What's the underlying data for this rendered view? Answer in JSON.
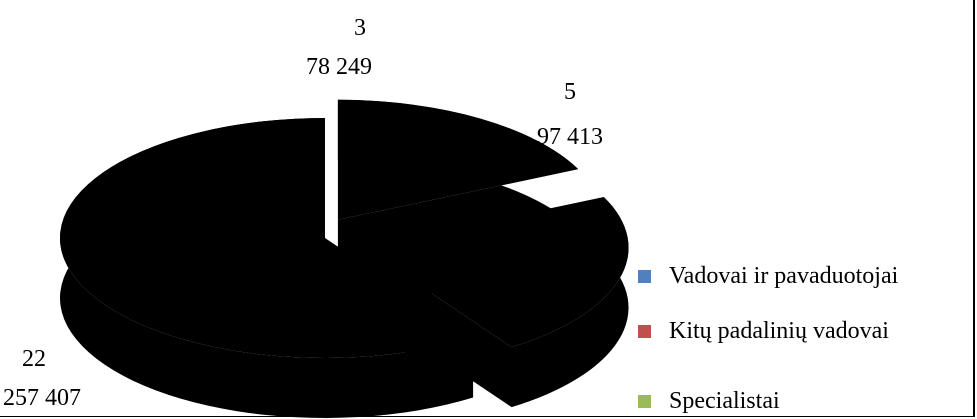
{
  "chart_data": {
    "type": "pie",
    "style": "3d-exploded",
    "categories": [
      "Vadovai ir pavaduotojai",
      "Kitų padalinių vadovai",
      "Specialistai"
    ],
    "counts": [
      3,
      5,
      22
    ],
    "values": [
      78249,
      97413,
      257407
    ],
    "data_labels": [
      {
        "count": "3",
        "value": "78 249"
      },
      {
        "count": "5",
        "value": "97 413"
      },
      {
        "count": "22",
        "value": "257 407"
      }
    ],
    "legend": {
      "position": "right",
      "items": [
        {
          "label": "Vadovai ir pavaduotojai",
          "color": "#4f81bd"
        },
        {
          "label": "Kitų padalinių vadovai",
          "color": "#c0504d"
        },
        {
          "label": "Specialistai",
          "color": "#9bbb59"
        }
      ]
    },
    "slice_fill_color": "#000000"
  }
}
